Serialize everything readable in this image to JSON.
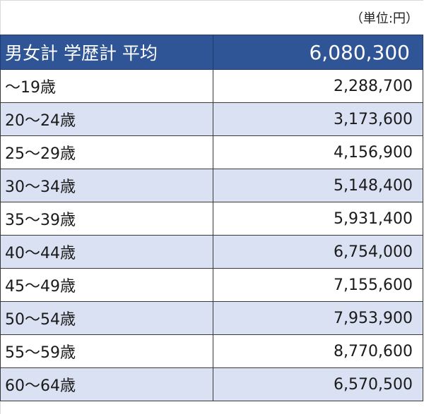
{
  "unit_label": "（単位:円）",
  "header": {
    "label": "男女計 学歴計 平均",
    "value": "6,080,300"
  },
  "rows": [
    {
      "age": "～19歳",
      "value": "2,288,700"
    },
    {
      "age": "20～24歳",
      "value": "3,173,600"
    },
    {
      "age": "25～29歳",
      "value": "4,156,900"
    },
    {
      "age": "30～34歳",
      "value": "5,148,400"
    },
    {
      "age": "35～39歳",
      "value": "5,931,400"
    },
    {
      "age": "40～44歳",
      "value": "6,754,000"
    },
    {
      "age": "45～49歳",
      "value": "7,155,600"
    },
    {
      "age": "50～54歳",
      "value": "7,953,900"
    },
    {
      "age": "55～59歳",
      "value": "8,770,600"
    },
    {
      "age": "60～64歳",
      "value": "6,570,500"
    }
  ],
  "colors": {
    "header_bg": "#2f5597",
    "header_text": "#ffffff",
    "alt_row_bg": "#d9e1f2",
    "row_bg": "#ffffff",
    "border": "#3a3a3a"
  }
}
